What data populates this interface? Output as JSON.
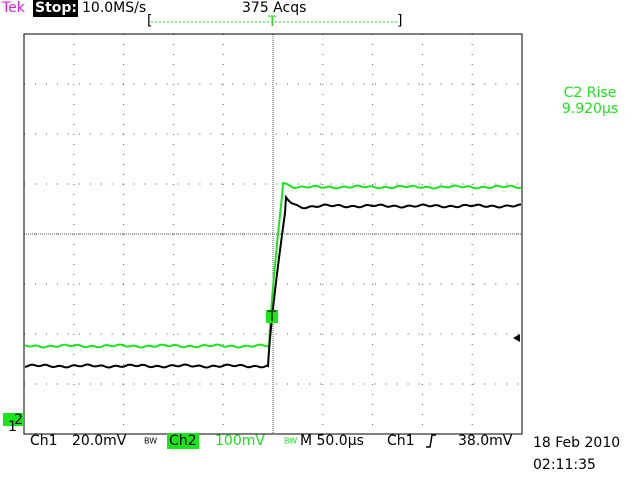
{
  "header": {
    "brand": "Tek",
    "state": "Stop:",
    "sample_rate": "10.0MS/s",
    "acquisitions": "375 Acqs",
    "trigger_position": "T"
  },
  "measurement": {
    "label": "C2 Rise",
    "value": "9.920µs"
  },
  "footer": {
    "ch1": "Ch1",
    "ch1_scale": "20.0mV",
    "bw1": "BW",
    "ch2": "Ch2",
    "ch2_scale": "100mV",
    "bw2": "BW",
    "timebase": "M 50.0µs",
    "trigger_source": "Ch1",
    "trigger_level": "38.0mV",
    "date": "18 Feb 2010",
    "time": "02:11:35"
  },
  "markers": {
    "ch2": "2",
    "ch1": "1",
    "trigger": "T"
  }
}
